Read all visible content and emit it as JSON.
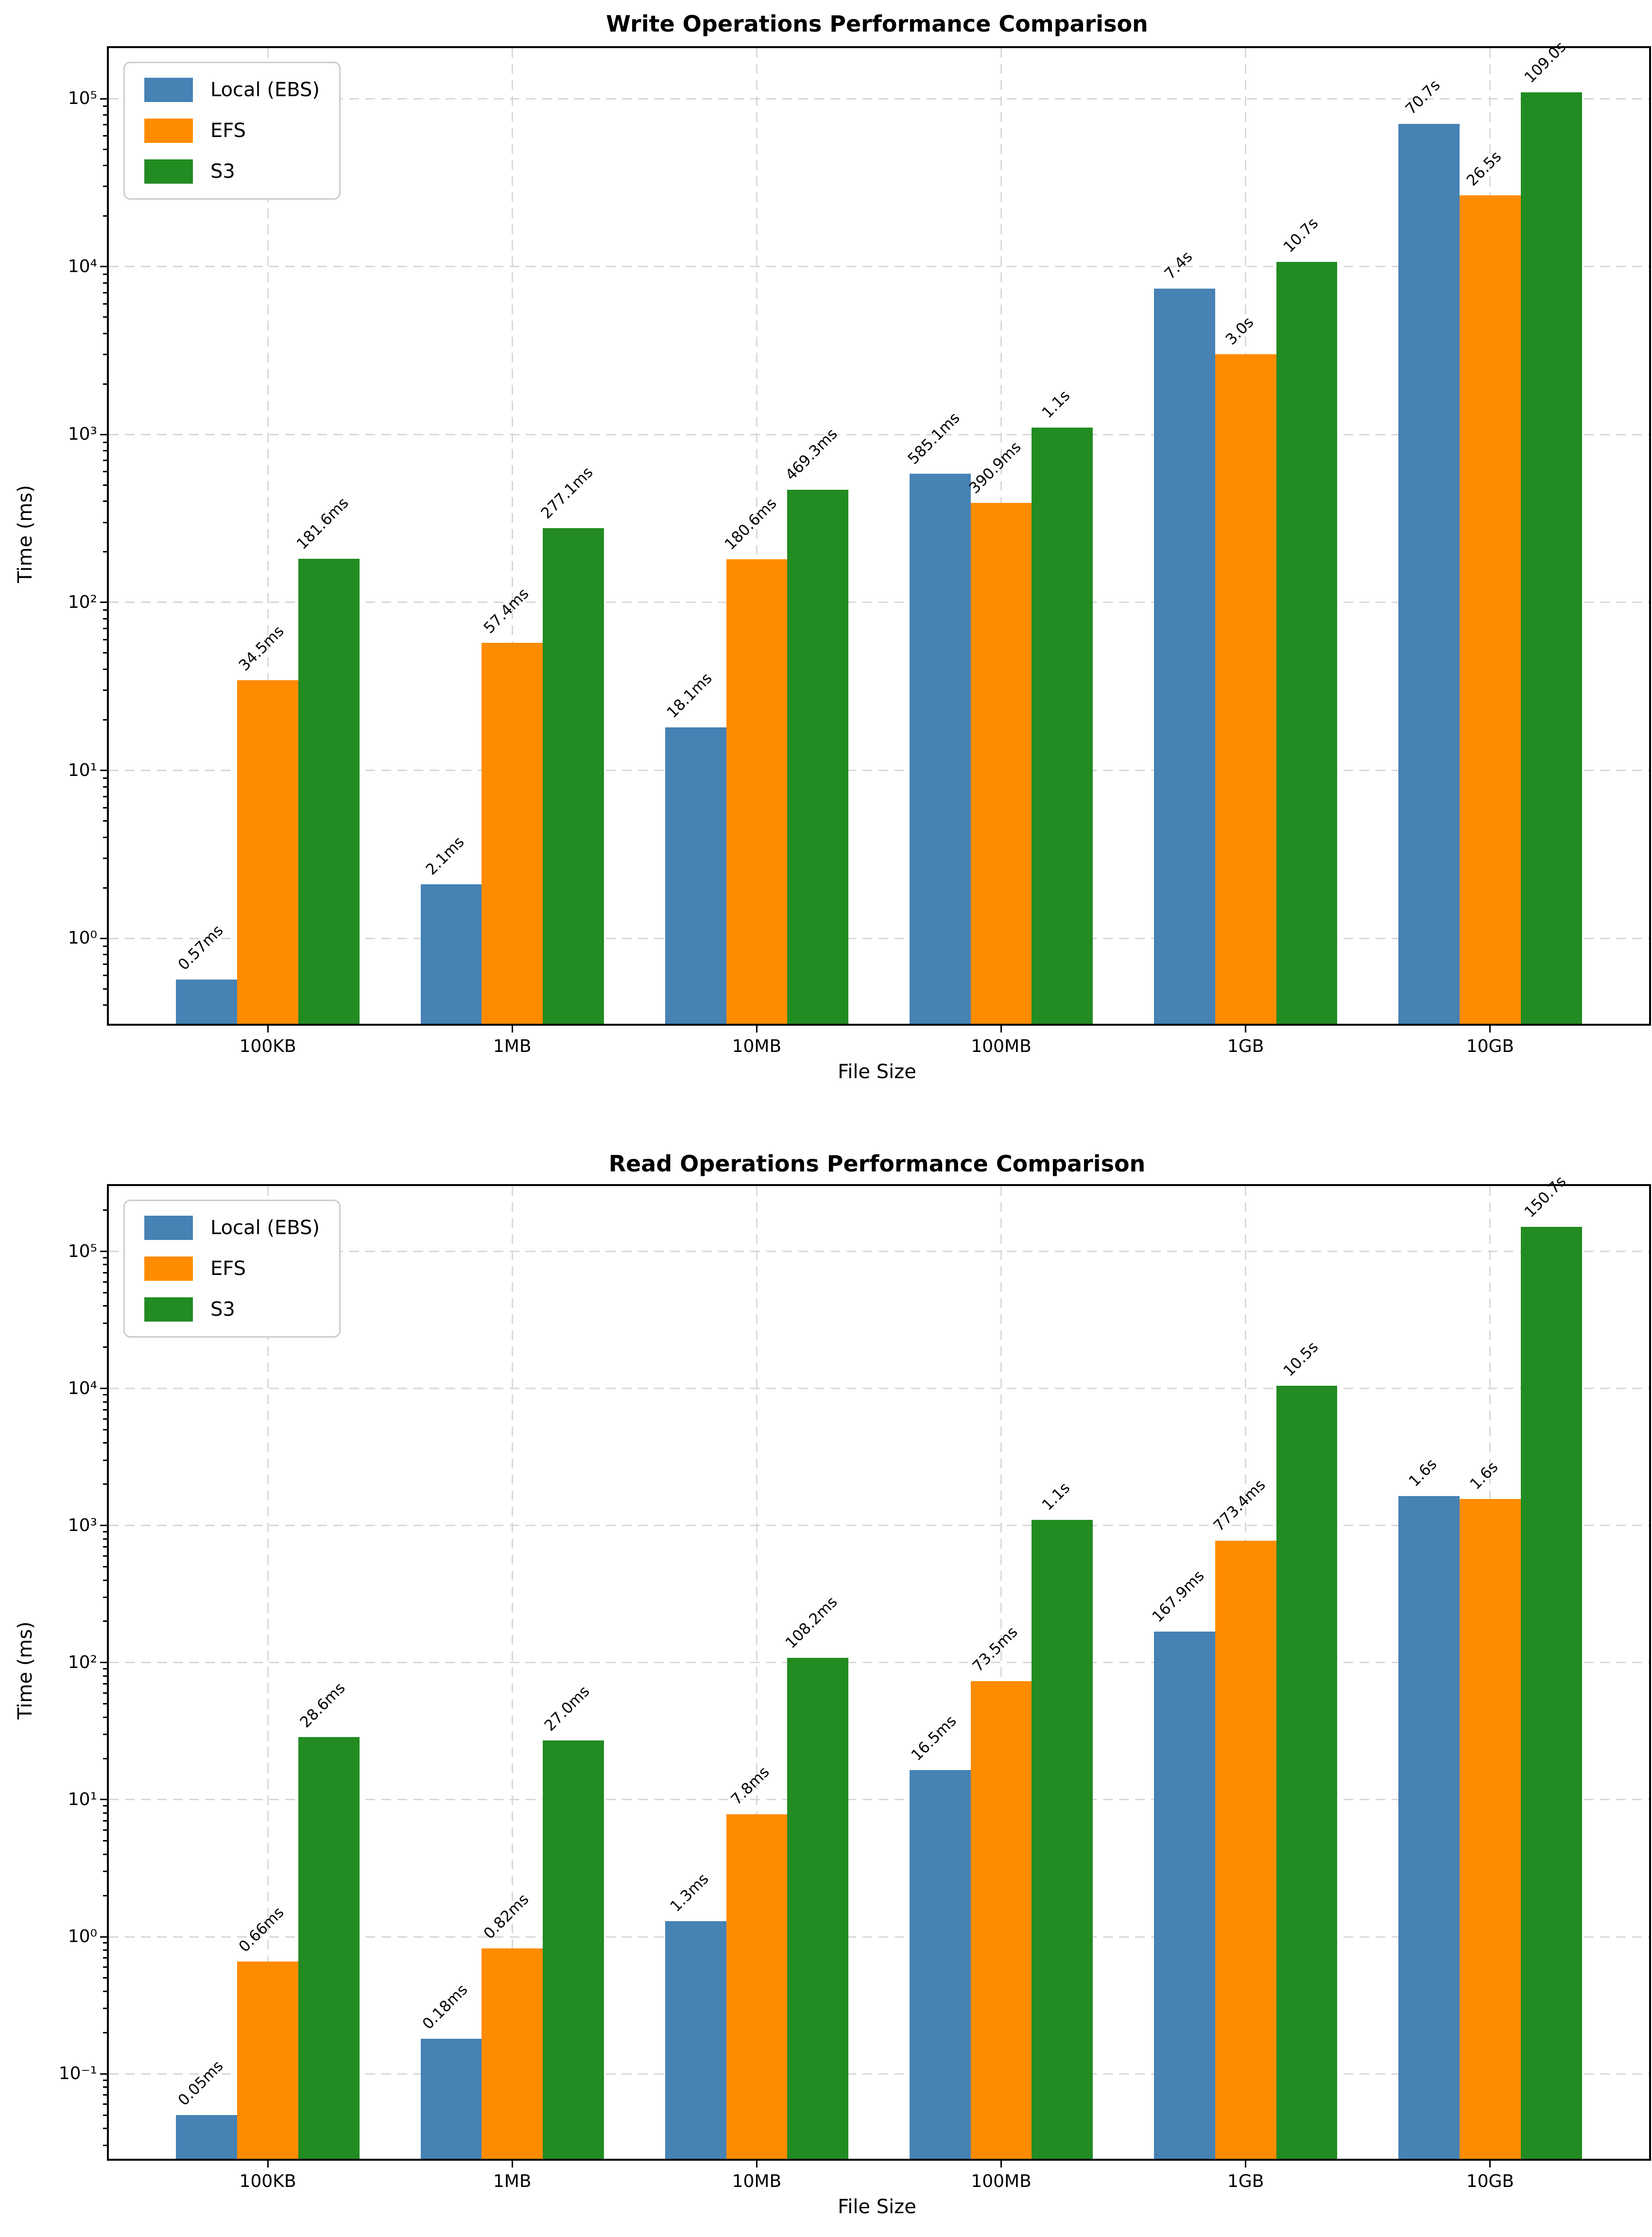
{
  "chart_data": [
    {
      "type": "bar",
      "title": "Write Operations Performance Comparison",
      "xlabel": "File Size",
      "ylabel": "Time (ms)",
      "yscale": "log",
      "grid": true,
      "legend_position": "upper-left",
      "categories": [
        "100KB",
        "1MB",
        "10MB",
        "100MB",
        "1GB",
        "10GB"
      ],
      "ylim": [
        0.31,
        200000
      ],
      "yticks": [
        {
          "label": "10⁰",
          "exp": 0
        },
        {
          "label": "10¹",
          "exp": 1
        },
        {
          "label": "10²",
          "exp": 2
        },
        {
          "label": "10³",
          "exp": 3
        },
        {
          "label": "10⁴",
          "exp": 4
        },
        {
          "label": "10⁵",
          "exp": 5
        }
      ],
      "series": [
        {
          "name": "Local (EBS)",
          "color": "#4682B4",
          "values_ms": [
            0.57,
            2.1,
            18.1,
            585.1,
            7400,
            70700
          ],
          "labels": [
            "0.57ms",
            "2.1ms",
            "18.1ms",
            "585.1ms",
            "7.4s",
            "70.7s"
          ]
        },
        {
          "name": "EFS",
          "color": "#FF8C00",
          "values_ms": [
            34.5,
            57.4,
            180.6,
            390.9,
            3000,
            26500
          ],
          "labels": [
            "34.5ms",
            "57.4ms",
            "180.6ms",
            "390.9ms",
            "3.0s",
            "26.5s"
          ]
        },
        {
          "name": "S3",
          "color": "#228B22",
          "values_ms": [
            181.6,
            277.1,
            469.3,
            1100,
            10700,
            109000
          ],
          "labels": [
            "181.6ms",
            "277.1ms",
            "469.3ms",
            "1.1s",
            "10.7s",
            "109.0s"
          ]
        }
      ]
    },
    {
      "type": "bar",
      "title": "Read Operations Performance Comparison",
      "xlabel": "File Size",
      "ylabel": "Time (ms)",
      "yscale": "log",
      "grid": true,
      "legend_position": "upper-left",
      "categories": [
        "100KB",
        "1MB",
        "10MB",
        "100MB",
        "1GB",
        "10GB"
      ],
      "ylim": [
        0.024,
        300000
      ],
      "yticks": [
        {
          "label": "10⁻¹",
          "exp": -1
        },
        {
          "label": "10⁰",
          "exp": 0
        },
        {
          "label": "10¹",
          "exp": 1
        },
        {
          "label": "10²",
          "exp": 2
        },
        {
          "label": "10³",
          "exp": 3
        },
        {
          "label": "10⁴",
          "exp": 4
        },
        {
          "label": "10⁵",
          "exp": 5
        }
      ],
      "series": [
        {
          "name": "Local (EBS)",
          "color": "#4682B4",
          "values_ms": [
            0.05,
            0.18,
            1.3,
            16.5,
            167.9,
            1640
          ],
          "labels": [
            "0.05ms",
            "0.18ms",
            "1.3ms",
            "16.5ms",
            "167.9ms",
            "1.6s"
          ]
        },
        {
          "name": "EFS",
          "color": "#FF8C00",
          "values_ms": [
            0.66,
            0.82,
            7.8,
            73.5,
            773.4,
            1560
          ],
          "labels": [
            "0.66ms",
            "0.82ms",
            "7.8ms",
            "73.5ms",
            "773.4ms",
            "1.6s"
          ]
        },
        {
          "name": "S3",
          "color": "#228B22",
          "values_ms": [
            28.6,
            27.0,
            108.2,
            1100,
            10500,
            150700
          ],
          "labels": [
            "28.6ms",
            "27.0ms",
            "108.2ms",
            "1.1s",
            "10.5s",
            "150.7s"
          ]
        }
      ]
    }
  ]
}
